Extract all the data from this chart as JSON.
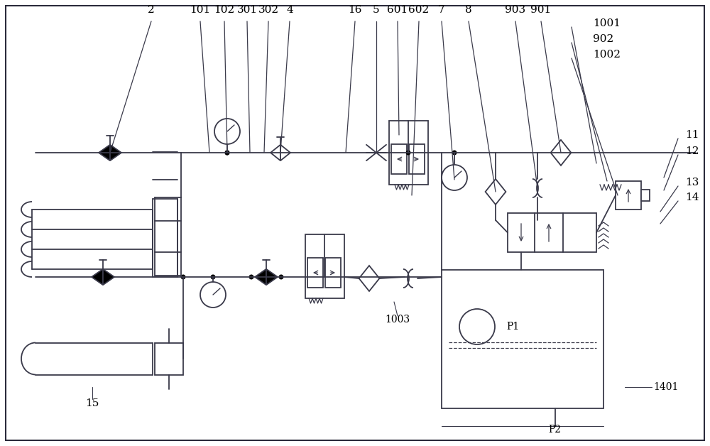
{
  "bg_color": "#ffffff",
  "line_color": "#3a3a4a",
  "lw": 1.3,
  "border_color": "#2a2a3a"
}
